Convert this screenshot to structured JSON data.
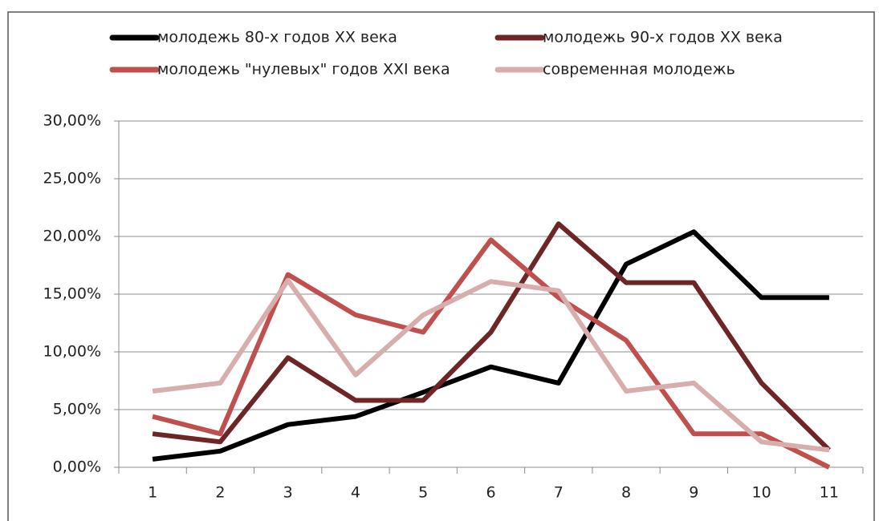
{
  "chart_data": {
    "type": "line",
    "categories": [
      "1",
      "2",
      "3",
      "4",
      "5",
      "6",
      "7",
      "8",
      "9",
      "10",
      "11"
    ],
    "series": [
      {
        "name": "молодежь 80-х годов XX века",
        "color": "#000000",
        "values": [
          0.7,
          1.4,
          3.7,
          4.4,
          6.5,
          8.7,
          7.3,
          17.6,
          20.4,
          14.7,
          14.7
        ]
      },
      {
        "name": "молодежь 90-х годов XX века",
        "color": "#6e2525",
        "values": [
          2.9,
          2.2,
          9.5,
          5.8,
          5.8,
          11.7,
          21.1,
          16.0,
          16.0,
          7.3,
          1.5
        ]
      },
      {
        "name": "молодежь \"нулевых\" годов XXI века",
        "color": "#c0504d",
        "values": [
          4.4,
          2.9,
          16.7,
          13.2,
          11.7,
          19.7,
          14.7,
          11.0,
          2.9,
          2.9,
          0
        ]
      },
      {
        "name": "современная молодежь",
        "color": "#d8aeac",
        "values": [
          6.6,
          7.3,
          16.2,
          8.0,
          13.2,
          16.1,
          15.3,
          6.6,
          7.3,
          2.2,
          1.5
        ]
      }
    ],
    "ylim": [
      0,
      30
    ],
    "yticks": [
      {
        "value": 0,
        "label": "0,00%"
      },
      {
        "value": 5,
        "label": "5,00%"
      },
      {
        "value": 10,
        "label": "10,00%"
      },
      {
        "value": 15,
        "label": "15,00%"
      },
      {
        "value": 20,
        "label": "20,00%"
      },
      {
        "value": 25,
        "label": "25,00%"
      },
      {
        "value": 30,
        "label": "30,00%"
      }
    ],
    "grid": true,
    "legend": "top"
  }
}
